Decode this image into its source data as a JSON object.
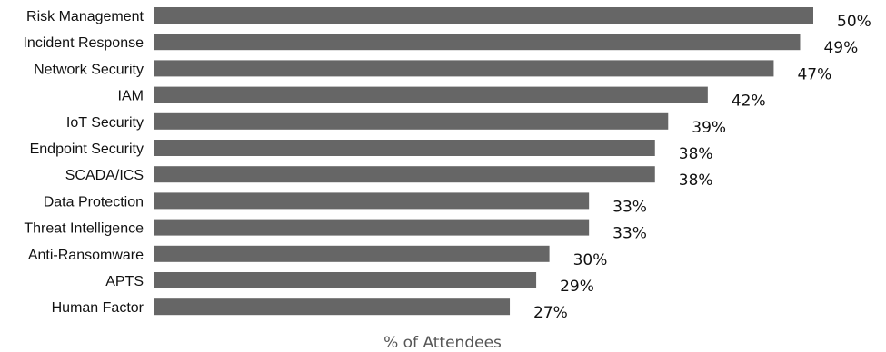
{
  "chart_data": {
    "type": "bar",
    "orientation": "horizontal",
    "categories": [
      "Risk Management",
      "Incident Response",
      "Network Security",
      "IAM",
      "IoT Security",
      "Endpoint Security",
      "SCADA/ICS",
      "Data Protection",
      "Threat Intelligence",
      "Anti-Ransomware",
      "APTS",
      "Human Factor"
    ],
    "values": [
      50,
      49,
      47,
      42,
      39,
      38,
      38,
      33,
      33,
      30,
      29,
      27
    ],
    "value_labels": [
      "50%",
      "49%",
      "47%",
      "42%",
      "39%",
      "38%",
      "38%",
      "33%",
      "33%",
      "30%",
      "29%",
      "27%"
    ],
    "title": "",
    "xlabel": "% of Attendees",
    "ylabel": "",
    "xlim": [
      0,
      50
    ],
    "grid": false,
    "legend": "none",
    "bar_color": "#666666"
  }
}
